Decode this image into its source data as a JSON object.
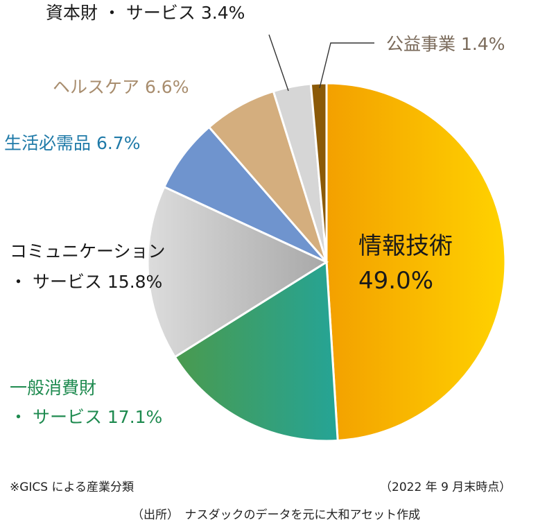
{
  "chart_data": {
    "type": "pie",
    "slices": [
      {
        "lines": [
          "情報技術",
          "49.0%"
        ],
        "value": 49.0,
        "color": "#f5a800",
        "label_color": "#1a1a1a"
      },
      {
        "lines": [
          "一般消費財",
          "・ サービス 17.1%"
        ],
        "value": 17.1,
        "color": "#2e9e86",
        "label_color": "#1e8a4f"
      },
      {
        "lines": [
          "コミュニケーション",
          "・ サービス 15.8%"
        ],
        "value": 15.8,
        "color": "#c4c4c4",
        "label_color": "#1a1a1a"
      },
      {
        "lines": [
          "生活必需品 6.7%"
        ],
        "value": 6.7,
        "color": "#6f94ce",
        "label_color": "#1f7aa8"
      },
      {
        "lines": [
          "ヘルスケア 6.6%"
        ],
        "value": 6.6,
        "color": "#d4ae7e",
        "label_color": "#a88d6e"
      },
      {
        "lines": [
          "資本財 ・ サービス 3.4%"
        ],
        "value": 3.4,
        "color": "#d6d6d6",
        "label_color": "#1a1a1a"
      },
      {
        "lines": [
          "公益事業 1.4%"
        ],
        "value": 1.4,
        "color": "#8b5a08",
        "label_color": "#7a6a5a"
      }
    ],
    "legend": "none"
  },
  "notes": {
    "classification": "※GICS による産業分類",
    "date": "（2022 年 9 月末時点）",
    "source": "（出所）　ナスダックのデータを元に大和アセット作成"
  }
}
